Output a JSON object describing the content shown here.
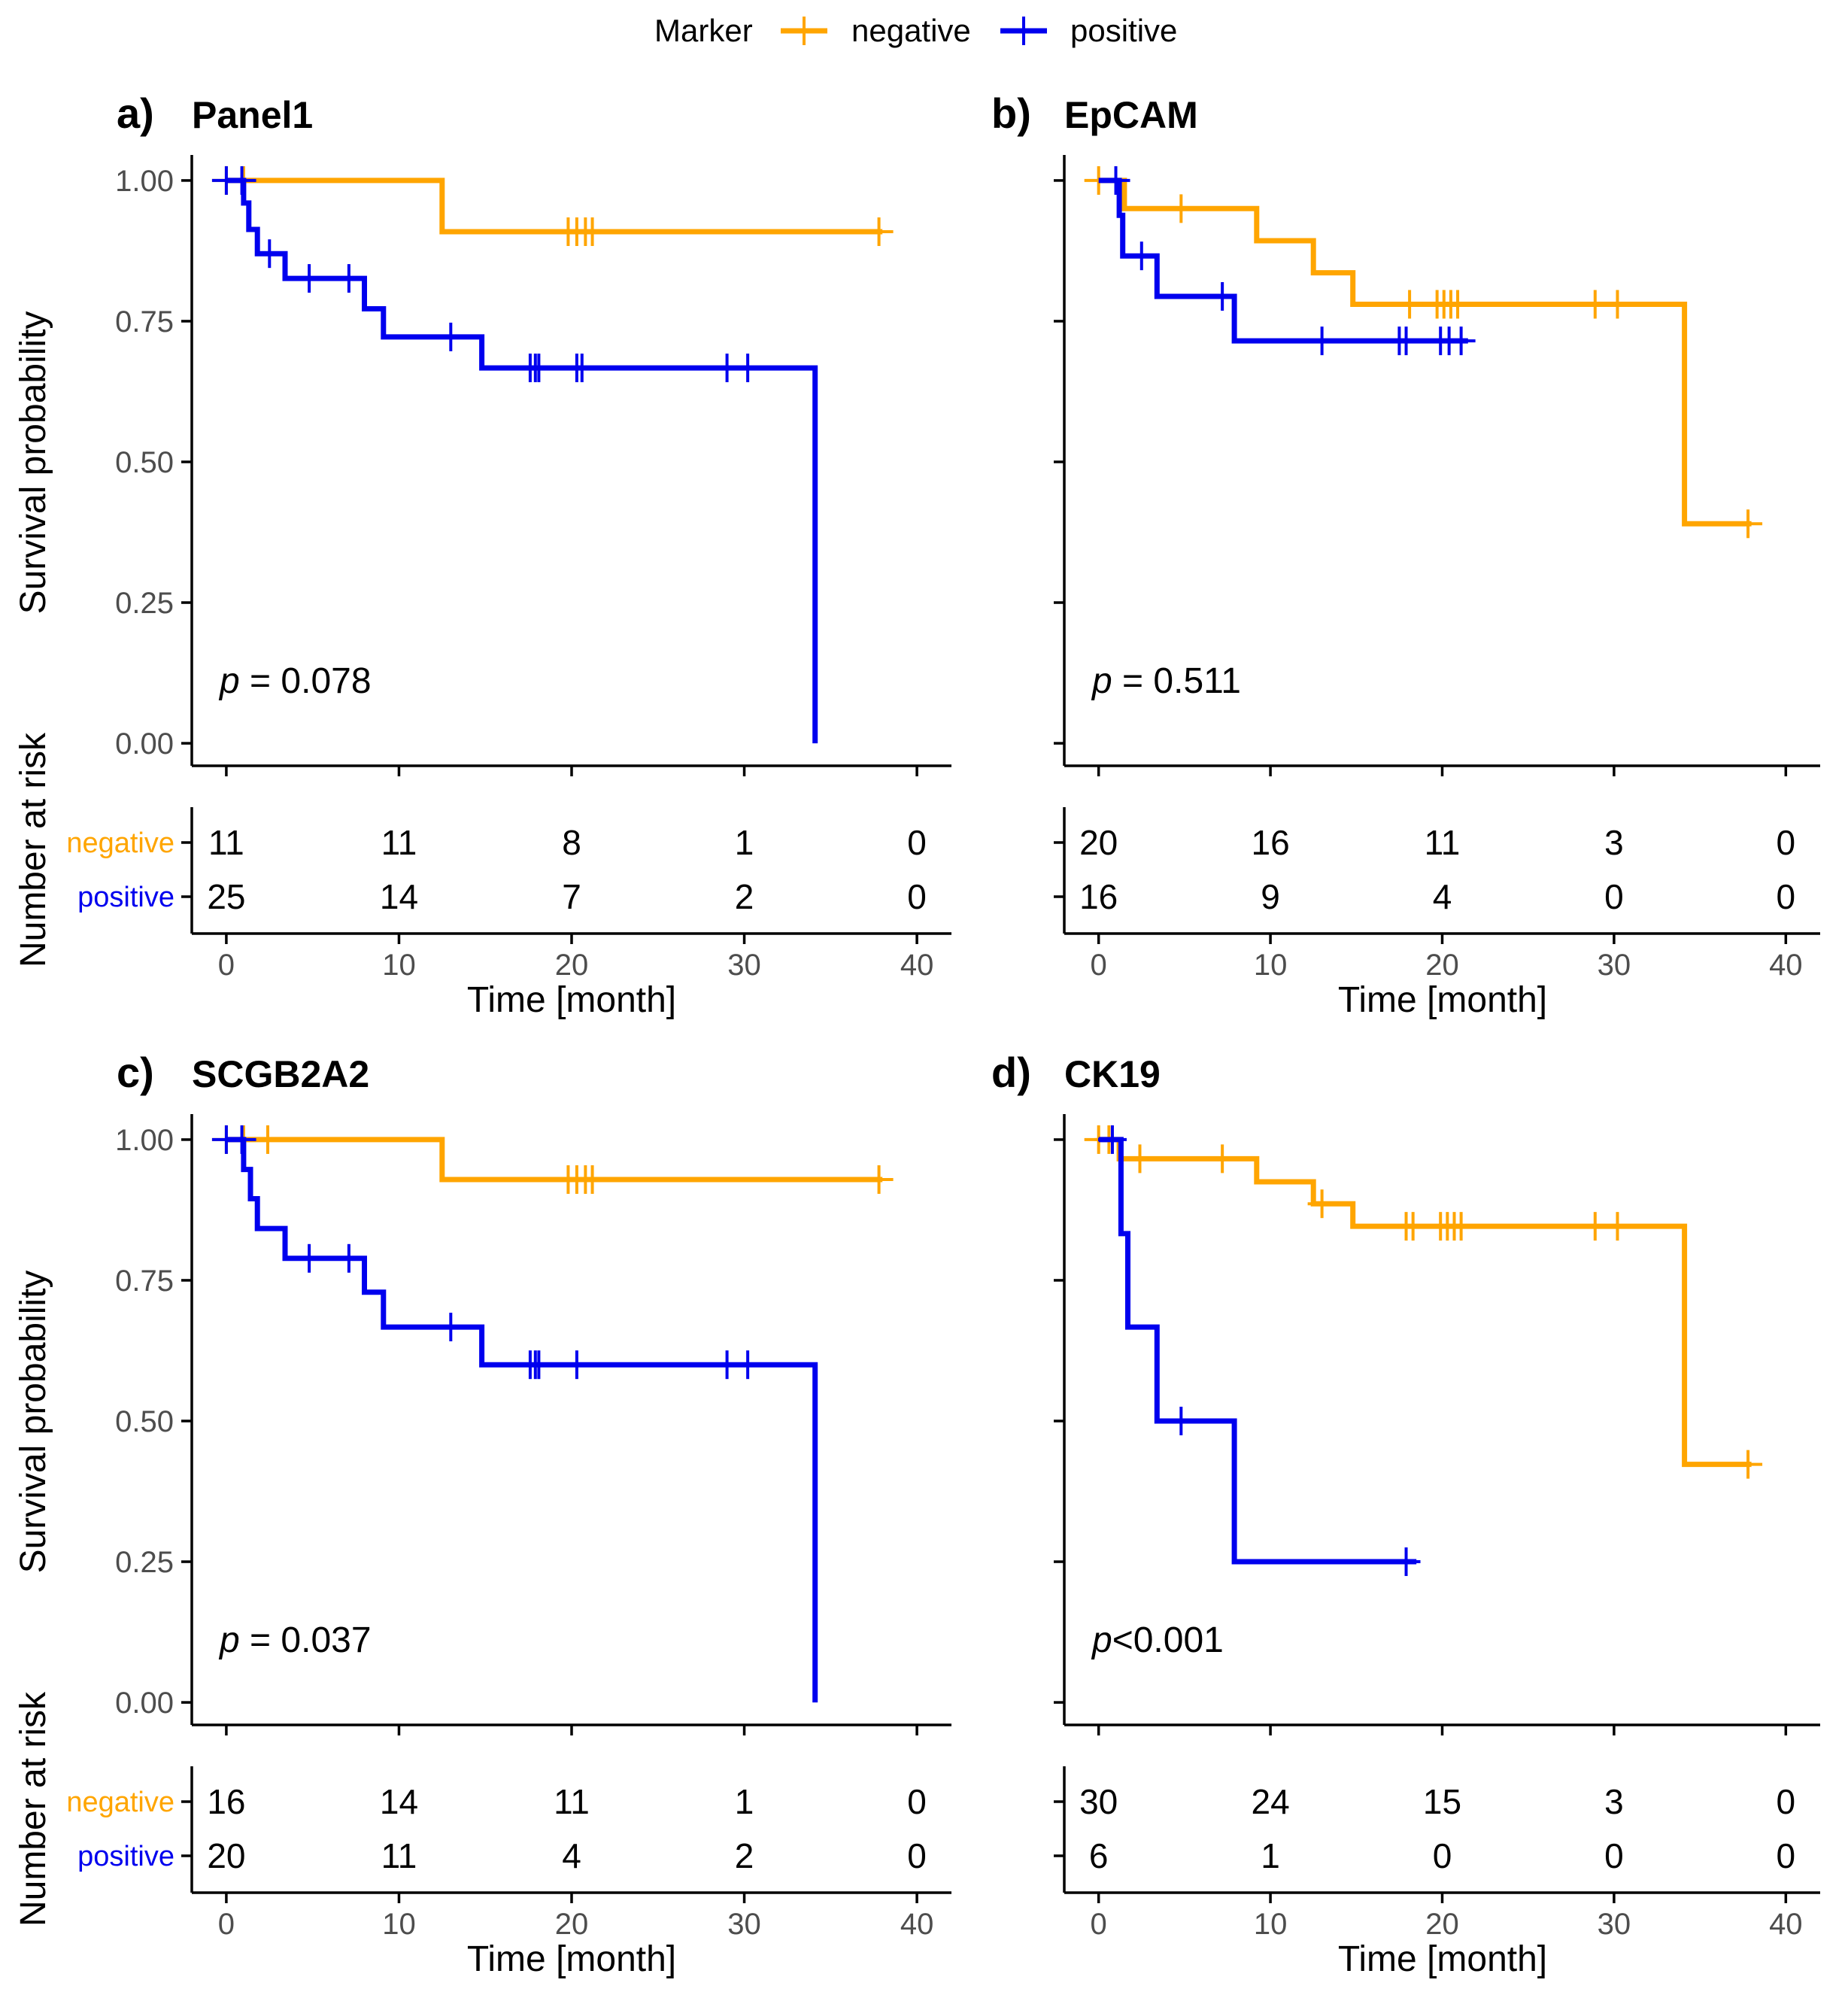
{
  "legend": {
    "title": "Marker",
    "items": [
      {
        "label": "negative",
        "color": "#FFA500"
      },
      {
        "label": "positive",
        "color": "#0000EE"
      }
    ]
  },
  "chart_data": [
    {
      "type": "line",
      "subtype": "kaplan-meier",
      "letter": "a)",
      "title": "Panel1",
      "ylabel": "Survival probability",
      "xlabel": "Time [month]",
      "risk_label": "Number at risk",
      "yticks": [
        "0.00",
        "0.25",
        "0.50",
        "0.75",
        "1.00"
      ],
      "xticks": [
        "0",
        "10",
        "20",
        "30",
        "40"
      ],
      "xlim": [
        -2,
        42
      ],
      "ylim": [
        -0.04,
        1.04
      ],
      "show_y_tick_labels": true,
      "show_risk_labels": true,
      "pvalue": {
        "p": "p",
        "text": " = 0.078"
      },
      "series": [
        {
          "name": "negative",
          "color": "#FFA500",
          "steps": [
            [
              0,
              1.0
            ],
            [
              12.5,
              0.909
            ],
            [
              38,
              0.909
            ]
          ],
          "censors": [
            [
              0,
              1.0
            ],
            [
              1,
              1.0
            ],
            [
              19.8,
              0.909
            ],
            [
              20.3,
              0.909
            ],
            [
              20.8,
              0.909
            ],
            [
              21.2,
              0.909
            ],
            [
              37.8,
              0.909
            ]
          ]
        },
        {
          "name": "positive",
          "color": "#0000EE",
          "steps": [
            [
              0,
              1.0
            ],
            [
              1.0,
              0.96
            ],
            [
              1.3,
              0.913
            ],
            [
              1.8,
              0.87
            ],
            [
              3.4,
              0.826
            ],
            [
              8,
              0.772
            ],
            [
              9.1,
              0.722
            ],
            [
              14.8,
              0.667
            ],
            [
              34.1,
              0.0
            ]
          ],
          "censors": [
            [
              0,
              1.0
            ],
            [
              0.9,
              1.0
            ],
            [
              2.5,
              0.87
            ],
            [
              4.8,
              0.826
            ],
            [
              7.1,
              0.826
            ],
            [
              13,
              0.722
            ],
            [
              17.6,
              0.667
            ],
            [
              17.9,
              0.667
            ],
            [
              18.1,
              0.667
            ],
            [
              20.3,
              0.667
            ],
            [
              20.6,
              0.667
            ],
            [
              29,
              0.667
            ],
            [
              30.2,
              0.667
            ]
          ]
        }
      ],
      "risk": {
        "times": [
          "0",
          "10",
          "20",
          "30",
          "40"
        ],
        "negative": [
          "11",
          "11",
          "8",
          "1",
          "0"
        ],
        "positive": [
          "25",
          "14",
          "7",
          "2",
          "0"
        ]
      }
    },
    {
      "type": "line",
      "subtype": "kaplan-meier",
      "letter": "b)",
      "title": "EpCAM",
      "ylabel": "",
      "xlabel": "Time [month]",
      "risk_label": "",
      "yticks": [
        "0.00",
        "0.25",
        "0.50",
        "0.75",
        "1.00"
      ],
      "xticks": [
        "0",
        "10",
        "20",
        "30",
        "40"
      ],
      "xlim": [
        -2,
        42
      ],
      "ylim": [
        -0.04,
        1.04
      ],
      "show_y_tick_labels": false,
      "show_risk_labels": false,
      "pvalue": {
        "p": "p",
        "text": " = 0.511"
      },
      "series": [
        {
          "name": "negative",
          "color": "#FFA500",
          "steps": [
            [
              0,
              1.0
            ],
            [
              1.5,
              0.95
            ],
            [
              9.2,
              0.893
            ],
            [
              12.5,
              0.836
            ],
            [
              14.8,
              0.78
            ],
            [
              34.1,
              0.39
            ],
            [
              38,
              0.39
            ]
          ],
          "censors": [
            [
              0,
              1.0
            ],
            [
              4.8,
              0.95
            ],
            [
              18.1,
              0.78
            ],
            [
              19.7,
              0.78
            ],
            [
              20.1,
              0.78
            ],
            [
              20.5,
              0.78
            ],
            [
              20.9,
              0.78
            ],
            [
              28.9,
              0.78
            ],
            [
              30.2,
              0.78
            ],
            [
              37.8,
              0.39
            ]
          ]
        },
        {
          "name": "positive",
          "color": "#0000EE",
          "steps": [
            [
              0,
              1.0
            ],
            [
              1.2,
              0.938
            ],
            [
              1.4,
              0.866
            ],
            [
              3.4,
              0.794
            ],
            [
              7.9,
              0.715
            ],
            [
              21.5,
              0.715
            ]
          ],
          "censors": [
            [
              1,
              1.0
            ],
            [
              2.5,
              0.866
            ],
            [
              7.2,
              0.794
            ],
            [
              13,
              0.715
            ],
            [
              17.5,
              0.715
            ],
            [
              17.9,
              0.715
            ],
            [
              19.9,
              0.715
            ],
            [
              20.4,
              0.715
            ],
            [
              21.1,
              0.715
            ]
          ]
        }
      ],
      "risk": {
        "times": [
          "0",
          "10",
          "20",
          "30",
          "40"
        ],
        "negative": [
          "20",
          "16",
          "11",
          "3",
          "0"
        ],
        "positive": [
          "16",
          "9",
          "4",
          "0",
          "0"
        ]
      }
    },
    {
      "type": "line",
      "subtype": "kaplan-meier",
      "letter": "c)",
      "title": "SCGB2A2",
      "ylabel": "Survival probability",
      "xlabel": "Time [month]",
      "risk_label": "Number at risk",
      "yticks": [
        "0.00",
        "0.25",
        "0.50",
        "0.75",
        "1.00"
      ],
      "xticks": [
        "0",
        "10",
        "20",
        "30",
        "40"
      ],
      "xlim": [
        -2,
        42
      ],
      "ylim": [
        -0.04,
        1.04
      ],
      "show_y_tick_labels": true,
      "show_risk_labels": true,
      "pvalue": {
        "p": "p",
        "text": " = 0.037"
      },
      "series": [
        {
          "name": "negative",
          "color": "#FFA500",
          "steps": [
            [
              0,
              1.0
            ],
            [
              12.5,
              0.929
            ],
            [
              38,
              0.929
            ]
          ],
          "censors": [
            [
              0,
              1.0
            ],
            [
              1,
              1.0
            ],
            [
              2.4,
              1.0
            ],
            [
              19.8,
              0.929
            ],
            [
              20.3,
              0.929
            ],
            [
              20.8,
              0.929
            ],
            [
              21.2,
              0.929
            ],
            [
              37.8,
              0.929
            ]
          ]
        },
        {
          "name": "positive",
          "color": "#0000EE",
          "steps": [
            [
              0,
              1.0
            ],
            [
              1.0,
              0.947
            ],
            [
              1.4,
              0.895
            ],
            [
              1.8,
              0.842
            ],
            [
              3.4,
              0.789
            ],
            [
              8,
              0.729
            ],
            [
              9.1,
              0.667
            ],
            [
              14.8,
              0.6
            ],
            [
              34.1,
              0.0
            ]
          ],
          "censors": [
            [
              0,
              1.0
            ],
            [
              0.9,
              1.0
            ],
            [
              4.8,
              0.789
            ],
            [
              7.1,
              0.789
            ],
            [
              13,
              0.667
            ],
            [
              17.6,
              0.6
            ],
            [
              17.9,
              0.6
            ],
            [
              18.1,
              0.6
            ],
            [
              20.3,
              0.6
            ],
            [
              29,
              0.6
            ],
            [
              30.2,
              0.6
            ]
          ]
        }
      ],
      "risk": {
        "times": [
          "0",
          "10",
          "20",
          "30",
          "40"
        ],
        "negative": [
          "16",
          "14",
          "11",
          "1",
          "0"
        ],
        "positive": [
          "20",
          "11",
          "4",
          "2",
          "0"
        ]
      }
    },
    {
      "type": "line",
      "subtype": "kaplan-meier",
      "letter": "d)",
      "title": "CK19",
      "ylabel": "",
      "xlabel": "Time [month]",
      "risk_label": "",
      "yticks": [
        "0.00",
        "0.25",
        "0.50",
        "0.75",
        "1.00"
      ],
      "xticks": [
        "0",
        "10",
        "20",
        "30",
        "40"
      ],
      "xlim": [
        -2,
        42
      ],
      "ylim": [
        -0.04,
        1.04
      ],
      "show_y_tick_labels": false,
      "show_risk_labels": false,
      "pvalue": {
        "p": "p",
        "text": "<0.001"
      },
      "series": [
        {
          "name": "negative",
          "color": "#FFA500",
          "steps": [
            [
              0,
              1.0
            ],
            [
              1.2,
              0.966
            ],
            [
              9.2,
              0.925
            ],
            [
              12.5,
              0.886
            ],
            [
              14.8,
              0.846
            ],
            [
              34.1,
              0.423
            ],
            [
              38,
              0.423
            ]
          ],
          "censors": [
            [
              0,
              1.0
            ],
            [
              0.6,
              1.0
            ],
            [
              2.4,
              0.966
            ],
            [
              7.2,
              0.966
            ],
            [
              13,
              0.886
            ],
            [
              17.9,
              0.846
            ],
            [
              18.3,
              0.846
            ],
            [
              19.9,
              0.846
            ],
            [
              20.3,
              0.846
            ],
            [
              20.7,
              0.846
            ],
            [
              21.1,
              0.846
            ],
            [
              28.9,
              0.846
            ],
            [
              30.2,
              0.846
            ],
            [
              37.8,
              0.423
            ]
          ]
        },
        {
          "name": "positive",
          "color": "#0000EE",
          "steps": [
            [
              0,
              1.0
            ],
            [
              1.3,
              0.833
            ],
            [
              1.7,
              0.667
            ],
            [
              3.4,
              0.5
            ],
            [
              7.9,
              0.25
            ],
            [
              18.5,
              0.25
            ]
          ],
          "censors": [
            [
              0.8,
              1.0
            ],
            [
              4.8,
              0.5
            ],
            [
              17.9,
              0.25
            ]
          ]
        }
      ],
      "risk": {
        "times": [
          "0",
          "10",
          "20",
          "30",
          "40"
        ],
        "negative": [
          "30",
          "24",
          "15",
          "3",
          "0"
        ],
        "positive": [
          "6",
          "1",
          "0",
          "0",
          "0"
        ]
      }
    }
  ]
}
